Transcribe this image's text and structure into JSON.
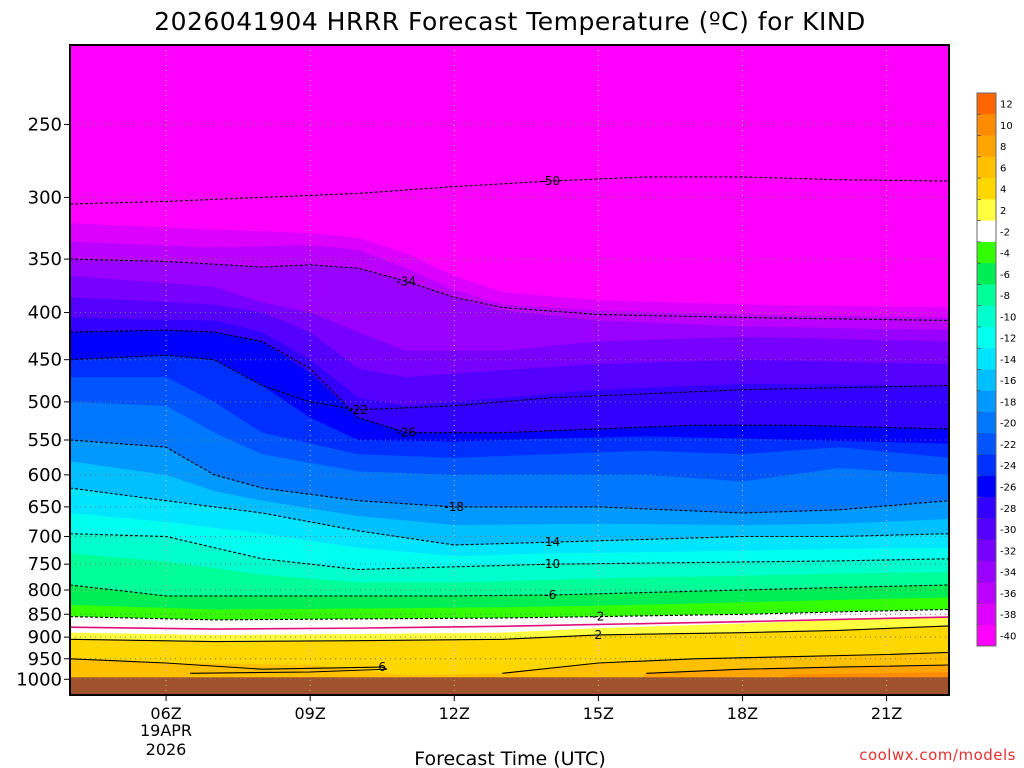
{
  "chart_data": {
    "type": "heatmap",
    "title": "2026041904 HRRR Forecast Temperature (ºC) for KIND",
    "xlabel": "Forecast Time (UTC)",
    "ylabel": "",
    "y_scale": "log",
    "y_reversed": true,
    "ylim": [
      1040,
      205
    ],
    "xlim": [
      4,
      22.3
    ],
    "x_tick_values": [
      6,
      9,
      12,
      15,
      18,
      21
    ],
    "x_tick_labels": [
      "06Z",
      "09Z",
      "12Z",
      "15Z",
      "18Z",
      "21Z"
    ],
    "x_tick_sublabel": [
      "19APR",
      "2026"
    ],
    "y_ticks": [
      250,
      300,
      350,
      400,
      450,
      500,
      550,
      600,
      650,
      700,
      750,
      800,
      850,
      900,
      950,
      1000
    ],
    "grid": true,
    "colorbar": {
      "levels": [
        12,
        10,
        8,
        6,
        4,
        2,
        -2,
        -4,
        -6,
        -8,
        -10,
        -12,
        -14,
        -16,
        -18,
        -20,
        -22,
        -24,
        -26,
        -28,
        -30,
        -32,
        -34,
        -36,
        -38,
        -40
      ],
      "colors": [
        "#ff6600",
        "#ff8c00",
        "#ffa500",
        "#ffc000",
        "#ffd700",
        "#ffff40",
        "#ffffff",
        "#33ff00",
        "#00ee55",
        "#00ff99",
        "#00ffcc",
        "#00ffee",
        "#00e5ff",
        "#00bfff",
        "#0099ff",
        "#0077ff",
        "#0055ff",
        "#0030ff",
        "#0000ff",
        "#3300ff",
        "#5500ff",
        "#7700ff",
        "#9900ff",
        "#bb00ff",
        "#dd00ff",
        "#ff00ff"
      ]
    },
    "contours": [
      {
        "label": "-50",
        "points": [
          [
            4,
            305
          ],
          [
            6,
            303
          ],
          [
            8,
            300
          ],
          [
            10,
            297
          ],
          [
            12,
            292
          ],
          [
            14,
            288
          ],
          [
            16,
            285
          ],
          [
            18,
            285
          ],
          [
            20,
            287
          ],
          [
            22.3,
            288
          ]
        ]
      },
      {
        "label": "-34",
        "points": [
          [
            4,
            350
          ],
          [
            6,
            352
          ],
          [
            8,
            357
          ],
          [
            9,
            355
          ],
          [
            10,
            358
          ],
          [
            11,
            370
          ],
          [
            12,
            385
          ],
          [
            13,
            395
          ],
          [
            15,
            402
          ],
          [
            18,
            405
          ],
          [
            22.3,
            408
          ]
        ]
      },
      {
        "label": "-22",
        "points": [
          [
            4,
            450
          ],
          [
            6,
            445
          ],
          [
            7,
            450
          ],
          [
            8,
            480
          ],
          [
            9,
            500
          ],
          [
            10,
            510
          ],
          [
            12,
            505
          ],
          [
            14,
            495
          ],
          [
            16,
            490
          ],
          [
            18,
            485
          ],
          [
            22.3,
            480
          ]
        ]
      },
      {
        "label": "-26",
        "points": [
          [
            4,
            420
          ],
          [
            6,
            418
          ],
          [
            7,
            420
          ],
          [
            8,
            430
          ],
          [
            9,
            460
          ],
          [
            10,
            520
          ],
          [
            11,
            540
          ],
          [
            13,
            540
          ],
          [
            15,
            535
          ],
          [
            17,
            530
          ],
          [
            19,
            530
          ],
          [
            22.3,
            535
          ]
        ]
      },
      {
        "label": "-18",
        "points": [
          [
            4,
            550
          ],
          [
            6,
            560
          ],
          [
            7,
            600
          ],
          [
            8,
            620
          ],
          [
            10,
            640
          ],
          [
            12,
            650
          ],
          [
            15,
            650
          ],
          [
            18,
            660
          ],
          [
            20,
            655
          ],
          [
            22.3,
            640
          ]
        ]
      },
      {
        "label": "-14",
        "points": [
          [
            4,
            620
          ],
          [
            6,
            640
          ],
          [
            8,
            660
          ],
          [
            10,
            690
          ],
          [
            12,
            715
          ],
          [
            14,
            710
          ],
          [
            16,
            705
          ],
          [
            18,
            700
          ],
          [
            20,
            700
          ],
          [
            22.3,
            695
          ]
        ]
      },
      {
        "label": "-10",
        "points": [
          [
            4,
            695
          ],
          [
            6,
            700
          ],
          [
            8,
            740
          ],
          [
            10,
            760
          ],
          [
            12,
            755
          ],
          [
            14,
            750
          ],
          [
            16,
            748
          ],
          [
            18,
            746
          ],
          [
            20,
            744
          ],
          [
            22.3,
            740
          ]
        ]
      },
      {
        "label": "-6",
        "points": [
          [
            4,
            790
          ],
          [
            6,
            812
          ],
          [
            8,
            812
          ],
          [
            10,
            812
          ],
          [
            12,
            812
          ],
          [
            14,
            810
          ],
          [
            16,
            805
          ],
          [
            18,
            800
          ],
          [
            20,
            795
          ],
          [
            22.3,
            790
          ]
        ]
      },
      {
        "label": "-2",
        "points": [
          [
            4,
            855
          ],
          [
            7,
            862
          ],
          [
            10,
            860
          ],
          [
            13,
            858
          ],
          [
            15,
            855
          ],
          [
            18,
            850
          ],
          [
            20,
            845
          ],
          [
            22.3,
            840
          ]
        ]
      },
      {
        "label": "2",
        "points": [
          [
            4,
            905
          ],
          [
            7,
            910
          ],
          [
            10,
            908
          ],
          [
            13,
            905
          ],
          [
            15,
            895
          ],
          [
            18,
            890
          ],
          [
            20,
            885
          ],
          [
            22.3,
            875
          ]
        ]
      },
      {
        "label": "6",
        "points": [
          [
            4,
            950
          ],
          [
            6,
            960
          ],
          [
            8,
            975
          ],
          [
            9.5,
            972
          ],
          [
            10.5,
            970
          ],
          [
            10.6,
            975
          ],
          [
            9,
            982
          ],
          [
            6.5,
            985
          ]
        ]
      },
      {
        "label": "",
        "points": [
          [
            13,
            985
          ],
          [
            15,
            960
          ],
          [
            17,
            950
          ],
          [
            19,
            945
          ],
          [
            21,
            940
          ],
          [
            22.3,
            935
          ]
        ]
      },
      {
        "label": "",
        "points": [
          [
            16,
            985
          ],
          [
            18,
            975
          ],
          [
            20,
            970
          ],
          [
            22.3,
            965
          ]
        ]
      }
    ],
    "credit": "coolwx.com/models"
  }
}
